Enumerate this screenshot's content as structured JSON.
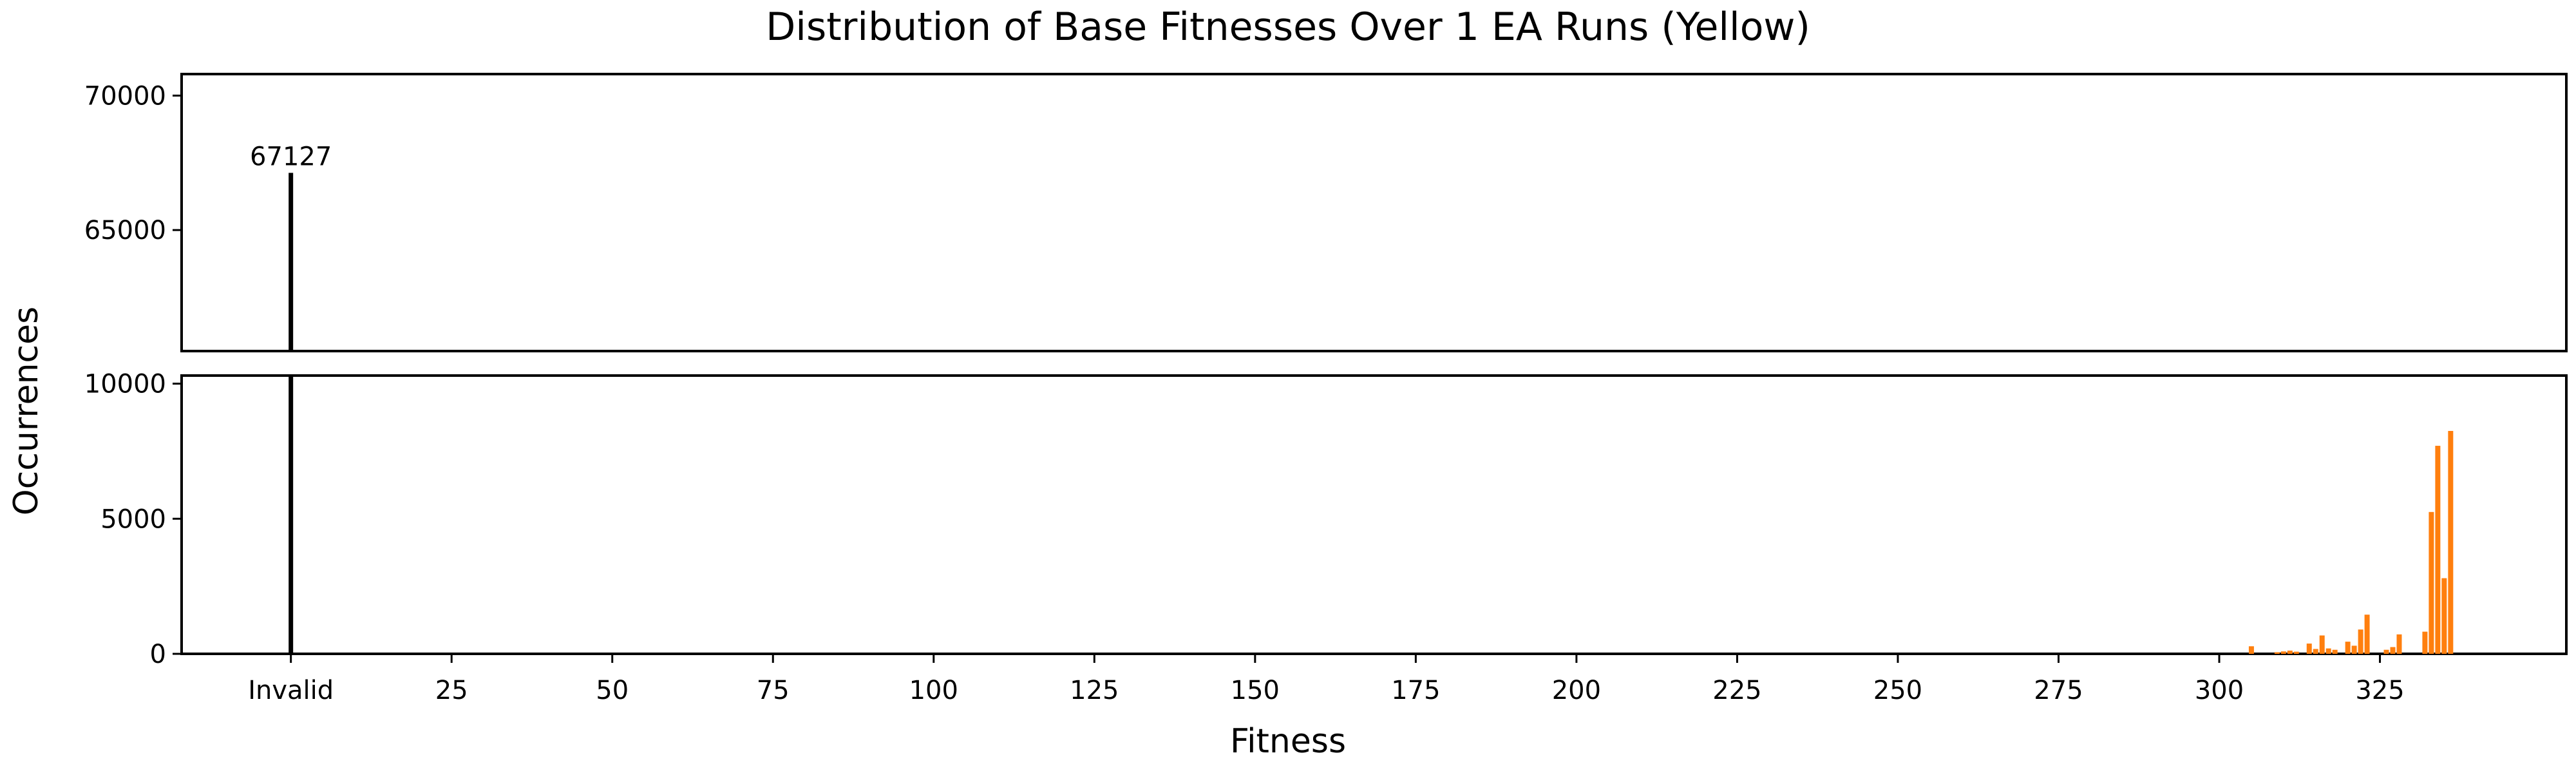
{
  "chart_data": {
    "type": "bar",
    "title": "Distribution of Base Fitnesses Over 1 EA Runs (Yellow)",
    "xlabel": "Fitness",
    "ylabel": "Occurrences",
    "xlim": [
      -17,
      354
    ],
    "x_ticks": [
      {
        "value": 0,
        "label": "Invalid"
      },
      {
        "value": 25,
        "label": "25"
      },
      {
        "value": 50,
        "label": "50"
      },
      {
        "value": 75,
        "label": "75"
      },
      {
        "value": 100,
        "label": "100"
      },
      {
        "value": 125,
        "label": "125"
      },
      {
        "value": 150,
        "label": "150"
      },
      {
        "value": 175,
        "label": "175"
      },
      {
        "value": 200,
        "label": "200"
      },
      {
        "value": 225,
        "label": "225"
      },
      {
        "value": 250,
        "label": "250"
      },
      {
        "value": 275,
        "label": "275"
      },
      {
        "value": 300,
        "label": "300"
      },
      {
        "value": 325,
        "label": "325"
      }
    ],
    "broken_axis": {
      "upper_ylim": [
        60500,
        70800
      ],
      "upper_ticks": [
        {
          "value": 65000,
          "label": "65000"
        },
        {
          "value": 70000,
          "label": "70000"
        }
      ],
      "lower_ylim": [
        0,
        10300
      ],
      "lower_ticks": [
        {
          "value": 0,
          "label": "0"
        },
        {
          "value": 5000,
          "label": "5000"
        },
        {
          "value": 10000,
          "label": "10000"
        }
      ]
    },
    "invalid_bar": {
      "x": 0,
      "value": 67127,
      "label": "67127",
      "color": "#000000"
    },
    "series": [
      {
        "color": "#ff7f0e",
        "points": [
          {
            "x": 305,
            "y": 280
          },
          {
            "x": 309,
            "y": 60
          },
          {
            "x": 310,
            "y": 90
          },
          {
            "x": 311,
            "y": 120
          },
          {
            "x": 312,
            "y": 80
          },
          {
            "x": 314,
            "y": 380
          },
          {
            "x": 315,
            "y": 180
          },
          {
            "x": 316,
            "y": 680
          },
          {
            "x": 317,
            "y": 200
          },
          {
            "x": 318,
            "y": 150
          },
          {
            "x": 320,
            "y": 450
          },
          {
            "x": 321,
            "y": 300
          },
          {
            "x": 322,
            "y": 900
          },
          {
            "x": 323,
            "y": 1450
          },
          {
            "x": 326,
            "y": 150
          },
          {
            "x": 327,
            "y": 250
          },
          {
            "x": 328,
            "y": 720
          },
          {
            "x": 332,
            "y": 820
          },
          {
            "x": 333,
            "y": 5250
          },
          {
            "x": 334,
            "y": 7700
          },
          {
            "x": 335,
            "y": 2800
          },
          {
            "x": 336,
            "y": 8250
          }
        ]
      }
    ]
  }
}
